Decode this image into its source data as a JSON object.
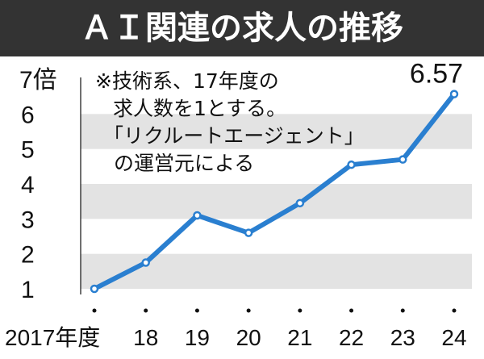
{
  "chart_data": {
    "type": "line",
    "title": "ＡＩ関連の求人の推移",
    "categories": [
      "2017年度",
      "18",
      "19",
      "20",
      "21",
      "22",
      "23",
      "24"
    ],
    "series": [
      {
        "values": [
          1,
          1.75,
          3.1,
          2.6,
          3.45,
          4.55,
          4.7,
          6.57
        ]
      }
    ],
    "y_tick_labels": [
      "1",
      "2",
      "3",
      "4",
      "5",
      "6",
      "7倍"
    ],
    "ylim": [
      1,
      7
    ],
    "value_label": "6.57",
    "note_lines": [
      "※技術系、17年度の",
      "求人数を1とする。",
      "「リクルートエージェント」",
      "の運営元による"
    ],
    "colors": {
      "line": "#2a7fd0",
      "title_bar": "#333333",
      "band": "#e3e3e3"
    }
  }
}
